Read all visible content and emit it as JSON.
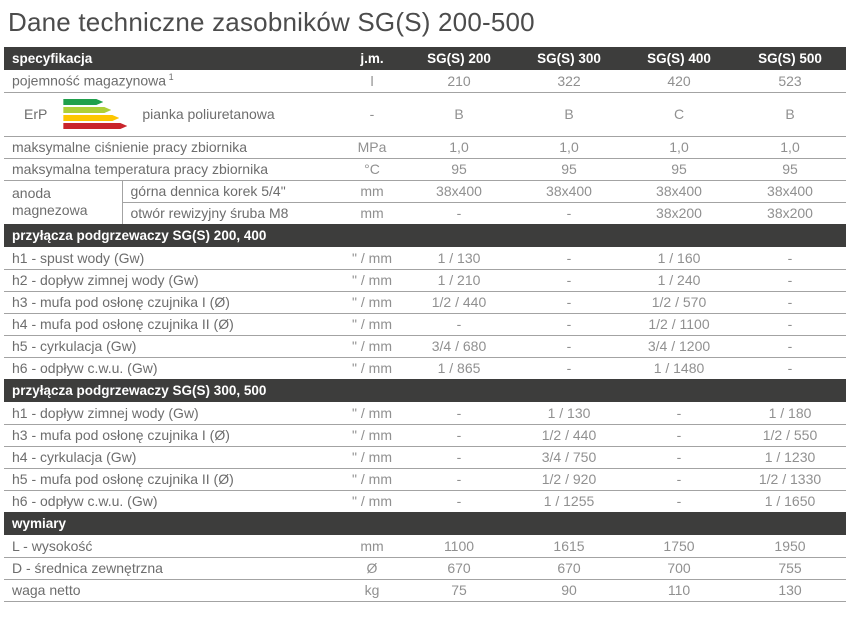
{
  "title": "Dane techniczne zasobników SG(S) 200-500",
  "colors": {
    "header_bg": "#3d3d3c",
    "header_text": "#ffffff",
    "label_text": "#6d6d6d",
    "value_text": "#909090",
    "divider": "#a3a3a3",
    "erp_bars": [
      "#1fa04c",
      "#aecf38",
      "#fdc600",
      "#c9252c"
    ]
  },
  "icons": {
    "erp": "energy-rating-bars"
  },
  "table": {
    "header": {
      "spec": "specyfikacja",
      "unit": "j.m.",
      "models": [
        "SG(S) 200",
        "SG(S) 300",
        "SG(S) 400",
        "SG(S) 500"
      ]
    },
    "sections": [
      {
        "rows": [
          {
            "label": "pojemność magazynowa",
            "sup": "1",
            "unit": "l",
            "values": [
              "210",
              "322",
              "420",
              "523"
            ]
          },
          {
            "erp": true,
            "erp_text": "ErP",
            "label": "pianka poliuretanowa",
            "unit": "-",
            "values": [
              "B",
              "B",
              "C",
              "B"
            ]
          },
          {
            "label": "maksymalne ciśnienie pracy zbiornika",
            "unit": "MPa",
            "values": [
              "1,0",
              "1,0",
              "1,0",
              "1,0"
            ]
          },
          {
            "label": "maksymalna temperatura pracy zbiornika",
            "unit": "°C",
            "values": [
              "95",
              "95",
              "95",
              "95"
            ]
          },
          {
            "group": "anoda magnezowa",
            "label": "górna dennica korek 5/4\"",
            "unit": "mm",
            "values": [
              "38x400",
              "38x400",
              "38x400",
              "38x400"
            ]
          },
          {
            "in_group": true,
            "label": "otwór rewizyjny śruba M8",
            "unit": "mm",
            "values": [
              "-",
              "-",
              "38x200",
              "38x200"
            ]
          }
        ]
      },
      {
        "title": "przyłącza podgrzewaczy SG(S) 200, 400",
        "rows": [
          {
            "label": "h1 - spust wody (Gw)",
            "unit": "\" / mm",
            "values": [
              "1 / 130",
              "-",
              "1 / 160",
              "-"
            ]
          },
          {
            "label": "h2 - dopływ zimnej wody (Gw)",
            "unit": "\" / mm",
            "values": [
              "1 / 210",
              "-",
              "1 / 240",
              "-"
            ]
          },
          {
            "label": "h3 - mufa pod osłonę czujnika I (Ø)",
            "unit": "\" / mm",
            "values": [
              "1/2 / 440",
              "-",
              "1/2 / 570",
              "-"
            ]
          },
          {
            "label": "h4 - mufa pod osłonę czujnika II (Ø)",
            "unit": "\" / mm",
            "values": [
              "-",
              "-",
              "1/2 / 1100",
              "-"
            ]
          },
          {
            "label": "h5 - cyrkulacja (Gw)",
            "unit": "\" / mm",
            "values": [
              "3/4 / 680",
              "-",
              "3/4 / 1200",
              "-"
            ]
          },
          {
            "label": "h6 - odpływ c.w.u. (Gw)",
            "unit": "\" / mm",
            "values": [
              "1 / 865",
              "-",
              "1 / 1480",
              "-"
            ]
          }
        ]
      },
      {
        "title": "przyłącza podgrzewaczy SG(S) 300, 500",
        "rows": [
          {
            "label": "h1 - dopływ zimnej wody (Gw)",
            "unit": "\" / mm",
            "values": [
              "-",
              "1 / 130",
              "-",
              "1 / 180"
            ]
          },
          {
            "label": "h3 - mufa pod osłonę czujnika I (Ø)",
            "unit": "\" / mm",
            "values": [
              "-",
              "1/2 / 440",
              "-",
              "1/2 / 550"
            ]
          },
          {
            "label": "h4 - cyrkulacja (Gw)",
            "unit": "\" / mm",
            "values": [
              "-",
              "3/4 / 750",
              "-",
              "1 / 1230"
            ]
          },
          {
            "label": "h5 - mufa pod osłonę czujnika II (Ø)",
            "unit": "\" / mm",
            "values": [
              "-",
              "1/2 / 920",
              "-",
              "1/2 / 1330"
            ]
          },
          {
            "label": "h6 - odpływ c.w.u. (Gw)",
            "unit": "\" / mm",
            "values": [
              "-",
              "1 / 1255",
              "-",
              "1 / 1650"
            ]
          }
        ]
      },
      {
        "title": "wymiary",
        "rows": [
          {
            "label": "L - wysokość",
            "unit": "mm",
            "values": [
              "1100",
              "1615",
              "1750",
              "1950"
            ]
          },
          {
            "label": "D - średnica zewnętrzna",
            "unit": "Ø",
            "values": [
              "670",
              "670",
              "700",
              "755"
            ]
          },
          {
            "label": "waga netto",
            "unit": "kg",
            "values": [
              "75",
              "90",
              "110",
              "130"
            ]
          }
        ]
      }
    ]
  }
}
